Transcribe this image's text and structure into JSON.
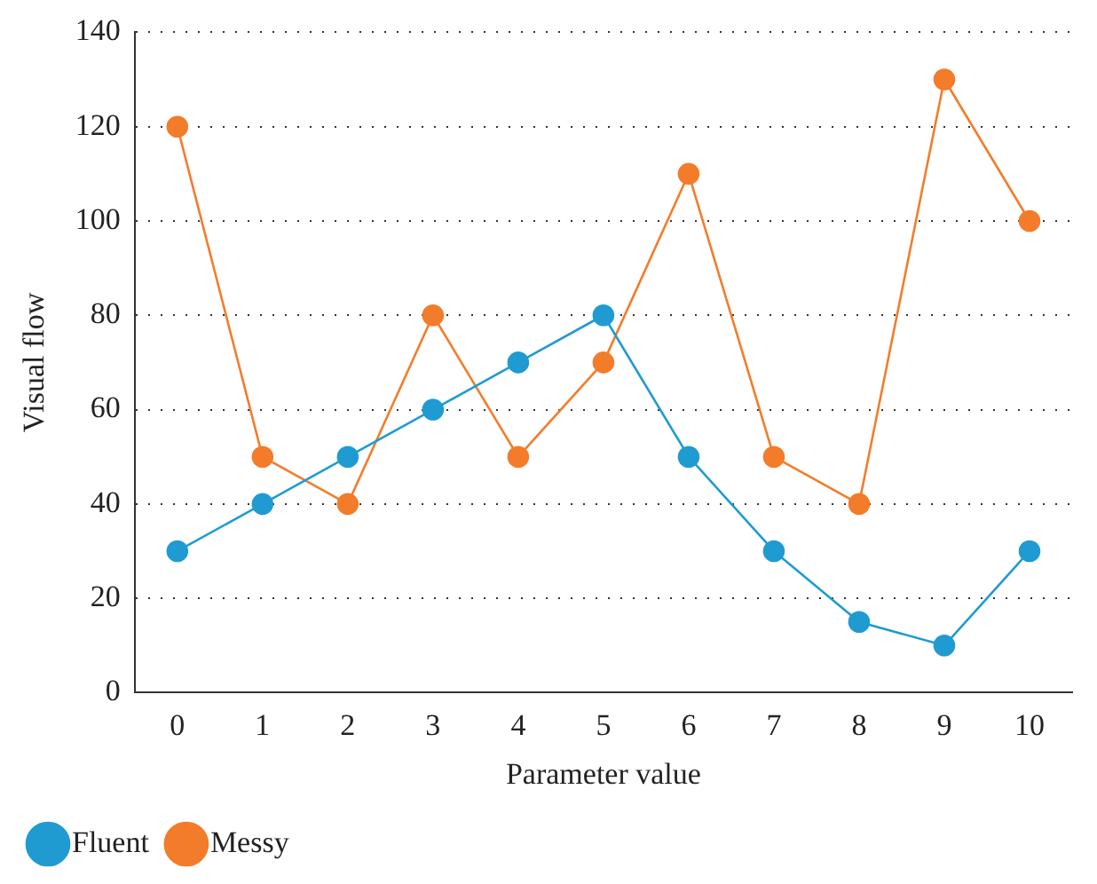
{
  "chart_data": {
    "type": "line",
    "xlabel": "Parameter value",
    "ylabel": "Visual flow",
    "categories": [
      "0",
      "1",
      "2",
      "3",
      "4",
      "5",
      "6",
      "7",
      "8",
      "9",
      "10"
    ],
    "series": [
      {
        "name": "Fluent",
        "color": "#1f9bd1",
        "values": [
          30,
          40,
          50,
          60,
          70,
          80,
          50,
          30,
          15,
          10,
          30
        ]
      },
      {
        "name": "Messy",
        "color": "#f37c2a",
        "values": [
          120,
          50,
          40,
          80,
          50,
          70,
          110,
          50,
          40,
          130,
          100
        ]
      }
    ],
    "ylim": [
      0,
      140
    ],
    "yticks": [
      0,
      20,
      40,
      60,
      80,
      100,
      120,
      140
    ],
    "grid": "y",
    "legend": "bottom left",
    "marker": "circle",
    "line_style": "solid"
  }
}
